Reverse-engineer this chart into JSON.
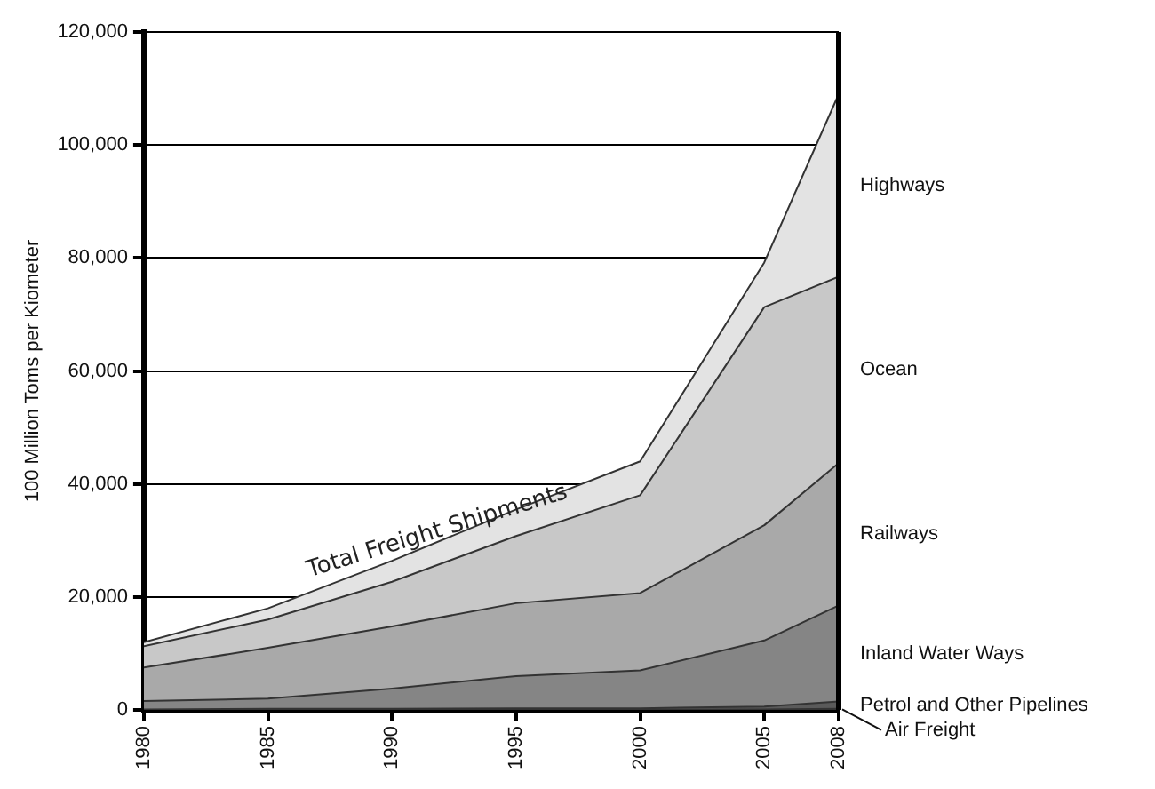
{
  "chart_data": {
    "type": "area",
    "stacked": true,
    "ylabel": "100 Million Toms per Kiometer",
    "x": [
      1980,
      1985,
      1990,
      1995,
      2000,
      2005,
      2008
    ],
    "xlim": [
      1980,
      2008
    ],
    "xticks": [
      1980,
      1985,
      1990,
      1995,
      2000,
      2005,
      2008
    ],
    "ylim": [
      0,
      120000
    ],
    "yticks": [
      0,
      {
        "value": 20000,
        "label": "20,000"
      },
      {
        "value": 40000,
        "label": "40,000"
      },
      {
        "value": 60000,
        "label": "60,000"
      },
      {
        "value": 80000,
        "label": "80,000"
      },
      {
        "value": 100000,
        "label": "100,000"
      },
      {
        "value": 120000,
        "label": "120,000"
      }
    ],
    "grid": "y",
    "legend": false,
    "marker": "none",
    "series": [
      {
        "name": "Air Freight",
        "color": "#333333",
        "values": [
          0,
          0,
          0,
          0,
          0,
          100,
          200
        ]
      },
      {
        "name": "Petrol and Other Pipelines",
        "color": "#5a5a5a",
        "values": [
          100,
          200,
          200,
          300,
          300,
          500,
          1300
        ]
      },
      {
        "name": "Inland Water Ways",
        "color": "#858585",
        "values": [
          1500,
          1800,
          3600,
          5700,
          6700,
          11700,
          17000
        ]
      },
      {
        "name": "Railways",
        "color": "#a9a9a9",
        "values": [
          5900,
          9000,
          11000,
          12900,
          13700,
          20400,
          25200
        ]
      },
      {
        "name": "Ocean",
        "color": "#c8c8c8",
        "values": [
          3800,
          5000,
          7900,
          11900,
          17300,
          38600,
          33000
        ]
      },
      {
        "name": "Highways",
        "color": "#e3e3e3",
        "values": [
          700,
          2000,
          3700,
          4700,
          6000,
          7900,
          32300
        ]
      }
    ],
    "annotations": [
      {
        "text": "Total Freight Shipments",
        "x": 1992,
        "y": 29000
      }
    ]
  }
}
